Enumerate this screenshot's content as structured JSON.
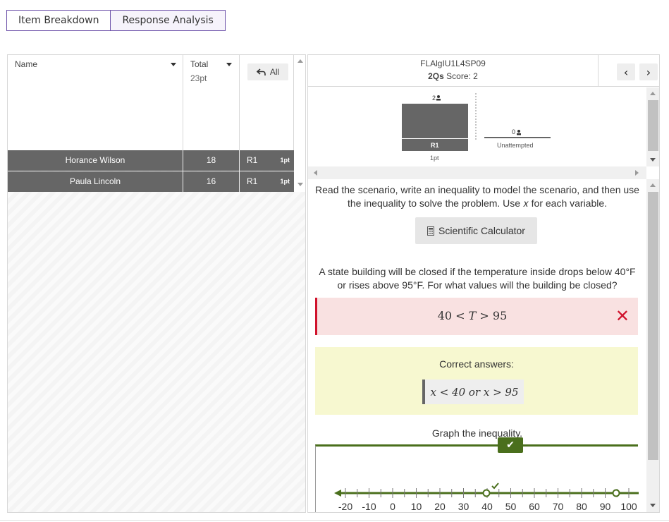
{
  "tabs": [
    {
      "label": "Item Breakdown"
    },
    {
      "label": "Response Analysis"
    }
  ],
  "left_table": {
    "header": {
      "name_label": "Name",
      "total_label": "Total",
      "total_sub": "23pt",
      "all_label": "All"
    },
    "rows": [
      {
        "name": "Horance Wilson",
        "total": "18",
        "item": "R1",
        "points": "1pt"
      },
      {
        "name": "Paula Lincoln",
        "total": "16",
        "item": "R1",
        "points": "1pt"
      }
    ]
  },
  "question": {
    "code": "FLAlgIU1L4SP09",
    "qs": "2Qs",
    "score_label": "Score: 2",
    "chart": {
      "bar1_count": "2",
      "bar1_label": "R1",
      "bar1_points": "1pt",
      "bar2_count": "0",
      "bar2_label": "Unattempted"
    },
    "prompt": "Read the scenario, write an inequality to model the scenario, and then use the inequality to solve the problem. Use 𝑥 for each variable.",
    "calculator_label": "Scientific Calculator",
    "scenario": "A state building will be closed if the temperature inside drops below 40°F or rises above 95°F. For what values will the building be closed?",
    "student_answer": "40 < 𝑇 > 95",
    "correct_title": "Correct answers:",
    "correct_answer": "𝑥 < 40 or 𝑥 > 95",
    "graph_title": "Graph the inequality.",
    "number_line_ticks": [
      "-20",
      "-10",
      "0",
      "10",
      "20",
      "30",
      "40",
      "50",
      "60",
      "70",
      "80",
      "90",
      "100"
    ]
  },
  "colors": {
    "accent_purple": "#6b4fa8",
    "row_gray": "#666666",
    "wrong_red": "#d0122c",
    "wrong_bg": "#f9e1e1",
    "correct_bg": "#f7f8d0",
    "graph_green": "#4a6f1c"
  }
}
